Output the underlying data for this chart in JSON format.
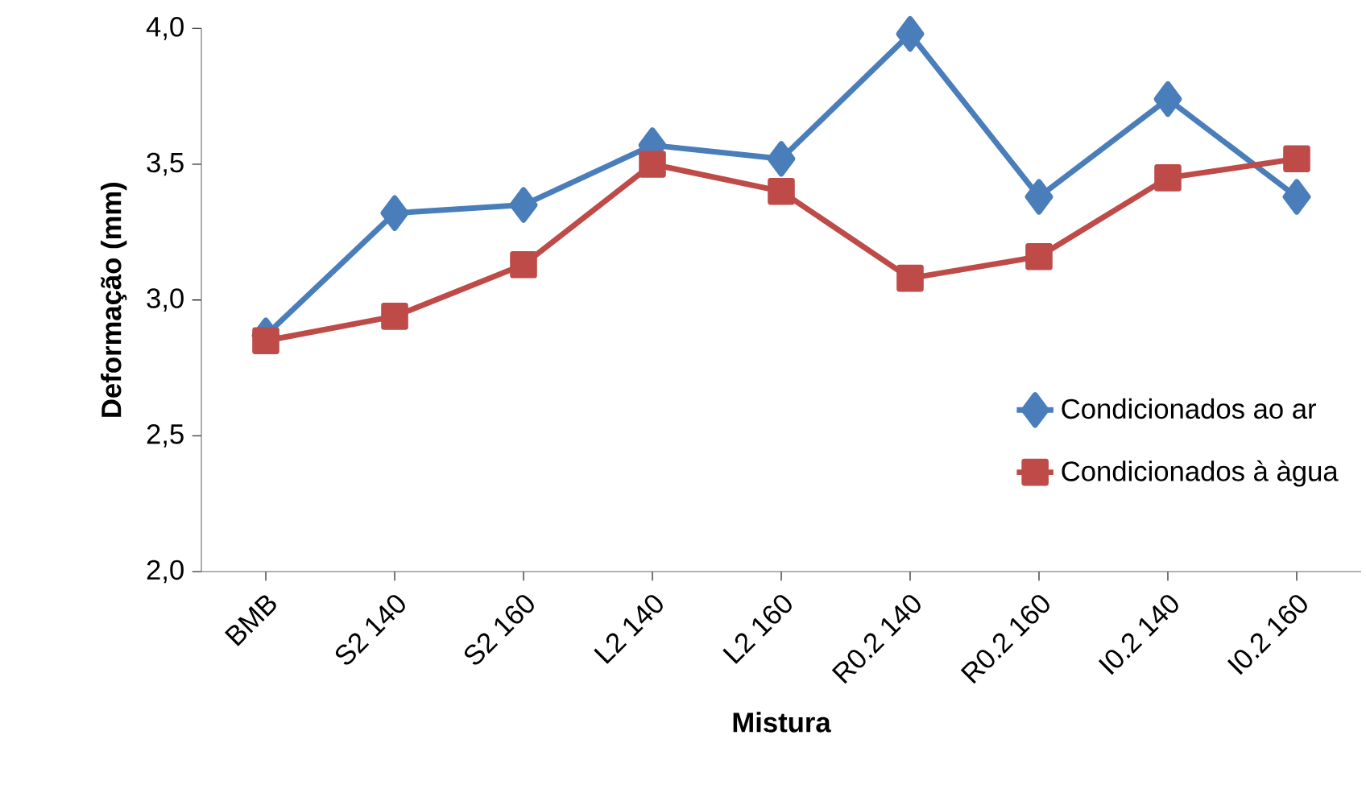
{
  "chart_data": {
    "type": "line",
    "xlabel": "Mistura",
    "ylabel": "Deformação (mm)",
    "categories": [
      "BMB",
      "S2 140",
      "S2 160",
      "L2 140",
      "L2 160",
      "R0.2 140",
      "R0.2 160",
      "I0.2 140",
      "I0.2 160"
    ],
    "series": [
      {
        "name": "Condicionados ao ar",
        "color": "#4a7ebb",
        "marker": "diamond",
        "values": [
          2.87,
          3.32,
          3.35,
          3.57,
          3.52,
          3.98,
          3.38,
          3.74,
          3.38
        ]
      },
      {
        "name": "Condicionados à àgua",
        "color": "#be4b48",
        "marker": "square",
        "values": [
          2.85,
          2.94,
          3.13,
          3.5,
          3.4,
          3.08,
          3.16,
          3.45,
          3.52
        ]
      }
    ],
    "ylim": [
      2.0,
      4.0
    ],
    "yticks": [
      {
        "value": 2.0,
        "label": "2,0"
      },
      {
        "value": 2.5,
        "label": "2,5"
      },
      {
        "value": 3.0,
        "label": "3,0"
      },
      {
        "value": 3.5,
        "label": "3,5"
      },
      {
        "value": 4.0,
        "label": "4,0"
      }
    ],
    "legend": "right",
    "grid": false,
    "line_style": "solid"
  }
}
